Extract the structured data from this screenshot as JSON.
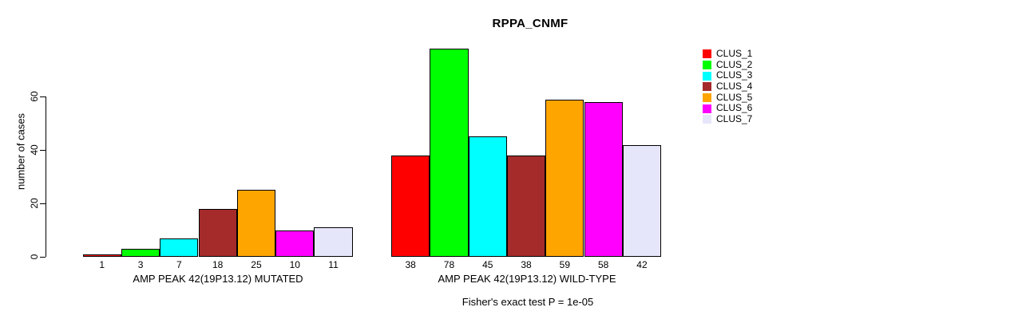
{
  "chart_data": {
    "type": "bar",
    "title": "RPPA_CNMF",
    "ylabel": "number of cases",
    "xlabel": "",
    "ylim": [
      0,
      78
    ],
    "yticks": [
      0,
      20,
      40,
      60
    ],
    "grid": false,
    "legend_position": "right",
    "bar_border_color": "#000000",
    "bar_value_labels": true,
    "categories": [
      "AMP PEAK 42(19P13.12) MUTATED",
      "AMP PEAK 42(19P13.12) WILD-TYPE"
    ],
    "series": [
      {
        "name": "CLUS_1",
        "color": "#FF0000",
        "values": [
          1,
          38
        ]
      },
      {
        "name": "CLUS_2",
        "color": "#00FF00",
        "values": [
          3,
          78
        ]
      },
      {
        "name": "CLUS_3",
        "color": "#00FFFF",
        "values": [
          7,
          45
        ]
      },
      {
        "name": "CLUS_4",
        "color": "#A52A2A",
        "values": [
          18,
          38
        ]
      },
      {
        "name": "CLUS_5",
        "color": "#FFA500",
        "values": [
          25,
          59
        ]
      },
      {
        "name": "CLUS_6",
        "color": "#FF00FF",
        "values": [
          10,
          58
        ]
      },
      {
        "name": "CLUS_7",
        "color": "#E6E6FA",
        "values": [
          11,
          42
        ]
      }
    ],
    "footnote": "Fisher's exact test P = 1e-05"
  }
}
